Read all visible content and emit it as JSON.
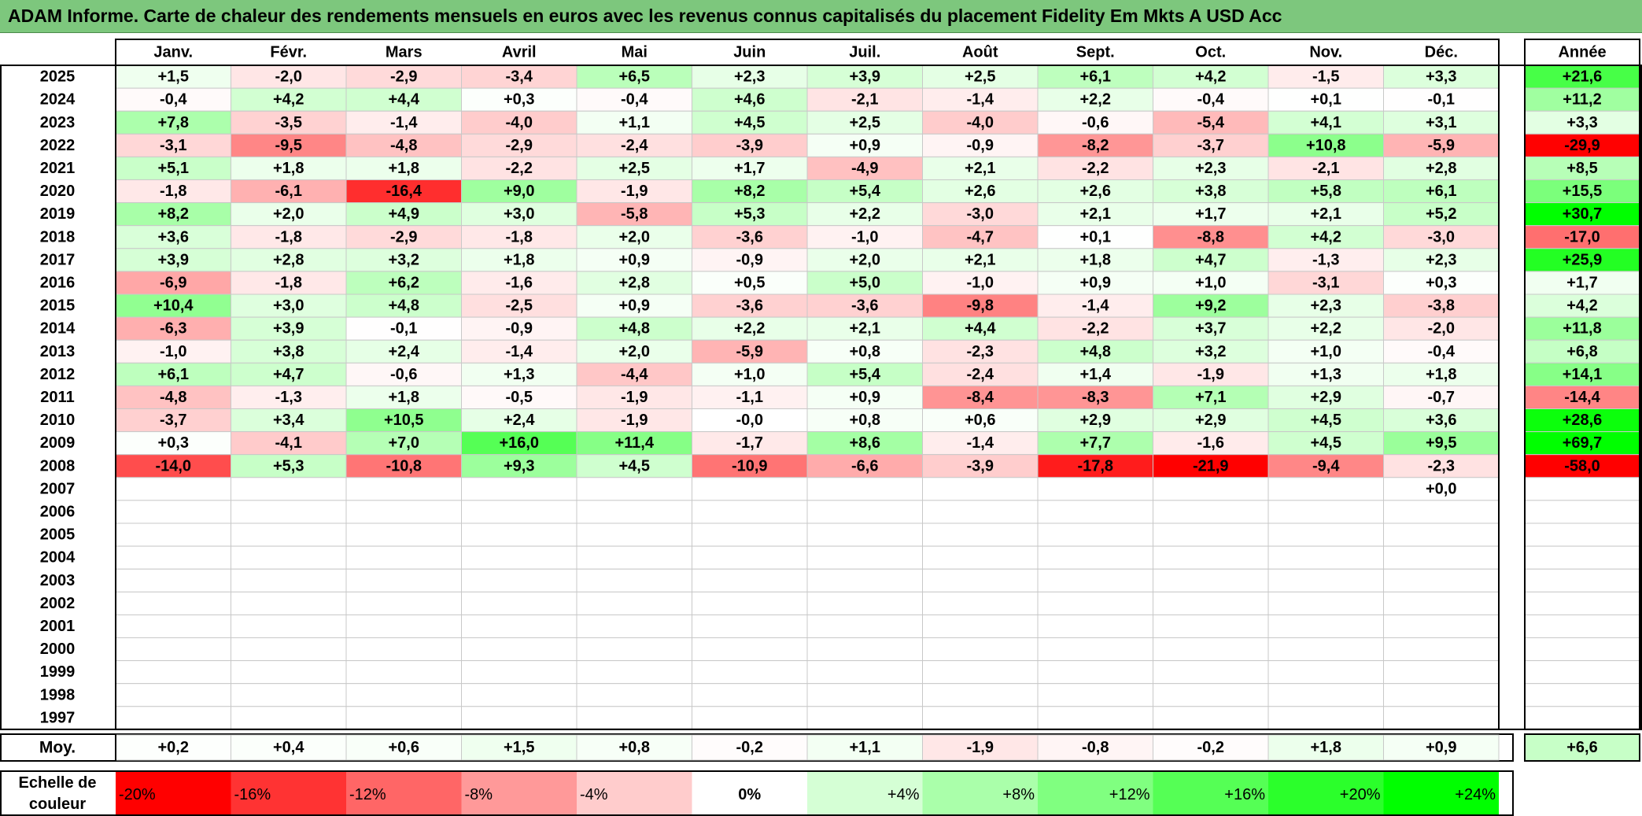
{
  "title": "ADAM Informe. Carte de chaleur des rendements mensuels en euros avec les revenus connus capitalisés du placement Fidelity Em Mkts A USD Acc",
  "chart_data": {
    "type": "heatmap",
    "title": "ADAM Informe. Carte de chaleur des rendements mensuels en euros avec les revenus connus capitalisés du placement Fidelity Em Mkts A USD Acc",
    "months": [
      "Janv.",
      "Févr.",
      "Mars",
      "Avril",
      "Mai",
      "Juin",
      "Juil.",
      "Août",
      "Sept.",
      "Oct.",
      "Nov.",
      "Déc."
    ],
    "annual_header": "Année",
    "rows": [
      {
        "year": "2025",
        "values": [
          "+1,5",
          "-2,0",
          "-2,9",
          "-3,4",
          "+6,5",
          "+2,3",
          "+3,9",
          "+2,5",
          "+6,1",
          "+4,2",
          "-1,5",
          "+3,3"
        ],
        "annual": "+21,6"
      },
      {
        "year": "2024",
        "values": [
          "-0,4",
          "+4,2",
          "+4,4",
          "+0,3",
          "-0,4",
          "+4,6",
          "-2,1",
          "-1,4",
          "+2,2",
          "-0,4",
          "+0,1",
          "-0,1"
        ],
        "annual": "+11,2"
      },
      {
        "year": "2023",
        "values": [
          "+7,8",
          "-3,5",
          "-1,4",
          "-4,0",
          "+1,1",
          "+4,5",
          "+2,5",
          "-4,0",
          "-0,6",
          "-5,4",
          "+4,1",
          "+3,1"
        ],
        "annual": "+3,3"
      },
      {
        "year": "2022",
        "values": [
          "-3,1",
          "-9,5",
          "-4,8",
          "-2,9",
          "-2,4",
          "-3,9",
          "+0,9",
          "-0,9",
          "-8,2",
          "-3,7",
          "+10,8",
          "-5,9"
        ],
        "annual": "-29,9"
      },
      {
        "year": "2021",
        "values": [
          "+5,1",
          "+1,8",
          "+1,8",
          "-2,2",
          "+2,5",
          "+1,7",
          "-4,9",
          "+2,1",
          "-2,2",
          "+2,3",
          "-2,1",
          "+2,8"
        ],
        "annual": "+8,5"
      },
      {
        "year": "2020",
        "values": [
          "-1,8",
          "-6,1",
          "-16,4",
          "+9,0",
          "-1,9",
          "+8,2",
          "+5,4",
          "+2,6",
          "+2,6",
          "+3,8",
          "+5,8",
          "+6,1"
        ],
        "annual": "+15,5"
      },
      {
        "year": "2019",
        "values": [
          "+8,2",
          "+2,0",
          "+4,9",
          "+3,0",
          "-5,8",
          "+5,3",
          "+2,2",
          "-3,0",
          "+2,1",
          "+1,7",
          "+2,1",
          "+5,2"
        ],
        "annual": "+30,7"
      },
      {
        "year": "2018",
        "values": [
          "+3,6",
          "-1,8",
          "-2,9",
          "-1,8",
          "+2,0",
          "-3,6",
          "-1,0",
          "-4,7",
          "+0,1",
          "-8,8",
          "+4,2",
          "-3,0"
        ],
        "annual": "-17,0"
      },
      {
        "year": "2017",
        "values": [
          "+3,9",
          "+2,8",
          "+3,2",
          "+1,8",
          "+0,9",
          "-0,9",
          "+2,0",
          "+2,1",
          "+1,8",
          "+4,7",
          "-1,3",
          "+2,3"
        ],
        "annual": "+25,9"
      },
      {
        "year": "2016",
        "values": [
          "-6,9",
          "-1,8",
          "+6,2",
          "-1,6",
          "+2,8",
          "+0,5",
          "+5,0",
          "-1,0",
          "+0,9",
          "+1,0",
          "-3,1",
          "+0,3"
        ],
        "annual": "+1,7"
      },
      {
        "year": "2015",
        "values": [
          "+10,4",
          "+3,0",
          "+4,8",
          "-2,5",
          "+0,9",
          "-3,6",
          "-3,6",
          "-9,8",
          "-1,4",
          "+9,2",
          "+2,3",
          "-3,8"
        ],
        "annual": "+4,2"
      },
      {
        "year": "2014",
        "values": [
          "-6,3",
          "+3,9",
          "-0,1",
          "-0,9",
          "+4,8",
          "+2,2",
          "+2,1",
          "+4,4",
          "-2,2",
          "+3,7",
          "+2,2",
          "-2,0"
        ],
        "annual": "+11,8"
      },
      {
        "year": "2013",
        "values": [
          "-1,0",
          "+3,8",
          "+2,4",
          "-1,4",
          "+2,0",
          "-5,9",
          "+0,8",
          "-2,3",
          "+4,8",
          "+3,2",
          "+1,0",
          "-0,4"
        ],
        "annual": "+6,8"
      },
      {
        "year": "2012",
        "values": [
          "+6,1",
          "+4,7",
          "-0,6",
          "+1,3",
          "-4,4",
          "+1,0",
          "+5,4",
          "-2,4",
          "+1,4",
          "-1,9",
          "+1,3",
          "+1,8"
        ],
        "annual": "+14,1"
      },
      {
        "year": "2011",
        "values": [
          "-4,8",
          "-1,3",
          "+1,8",
          "-0,5",
          "-1,9",
          "-1,1",
          "+0,9",
          "-8,4",
          "-8,3",
          "+7,1",
          "+2,9",
          "-0,7"
        ],
        "annual": "-14,4"
      },
      {
        "year": "2010",
        "values": [
          "-3,7",
          "+3,4",
          "+10,5",
          "+2,4",
          "-1,9",
          "-0,0",
          "+0,8",
          "+0,6",
          "+2,9",
          "+2,9",
          "+4,5",
          "+3,6"
        ],
        "annual": "+28,6"
      },
      {
        "year": "2009",
        "values": [
          "+0,3",
          "-4,1",
          "+7,0",
          "+16,0",
          "+11,4",
          "-1,7",
          "+8,6",
          "-1,4",
          "+7,7",
          "-1,6",
          "+4,5",
          "+9,5"
        ],
        "annual": "+69,7"
      },
      {
        "year": "2008",
        "values": [
          "-14,0",
          "+5,3",
          "-10,8",
          "+9,3",
          "+4,5",
          "-10,9",
          "-6,6",
          "-3,9",
          "-17,8",
          "-21,9",
          "-9,4",
          "-2,3"
        ],
        "annual": "-58,0"
      },
      {
        "year": "2007",
        "values": [
          "",
          "",
          "",
          "",
          "",
          "",
          "",
          "",
          "",
          "",
          "",
          "+0,0"
        ],
        "annual": ""
      },
      {
        "year": "2006",
        "values": [
          "",
          "",
          "",
          "",
          "",
          "",
          "",
          "",
          "",
          "",
          "",
          ""
        ],
        "annual": ""
      },
      {
        "year": "2005",
        "values": [
          "",
          "",
          "",
          "",
          "",
          "",
          "",
          "",
          "",
          "",
          "",
          ""
        ],
        "annual": ""
      },
      {
        "year": "2004",
        "values": [
          "",
          "",
          "",
          "",
          "",
          "",
          "",
          "",
          "",
          "",
          "",
          ""
        ],
        "annual": ""
      },
      {
        "year": "2003",
        "values": [
          "",
          "",
          "",
          "",
          "",
          "",
          "",
          "",
          "",
          "",
          "",
          ""
        ],
        "annual": ""
      },
      {
        "year": "2002",
        "values": [
          "",
          "",
          "",
          "",
          "",
          "",
          "",
          "",
          "",
          "",
          "",
          ""
        ],
        "annual": ""
      },
      {
        "year": "2001",
        "values": [
          "",
          "",
          "",
          "",
          "",
          "",
          "",
          "",
          "",
          "",
          "",
          ""
        ],
        "annual": ""
      },
      {
        "year": "2000",
        "values": [
          "",
          "",
          "",
          "",
          "",
          "",
          "",
          "",
          "",
          "",
          "",
          ""
        ],
        "annual": ""
      },
      {
        "year": "1999",
        "values": [
          "",
          "",
          "",
          "",
          "",
          "",
          "",
          "",
          "",
          "",
          "",
          ""
        ],
        "annual": ""
      },
      {
        "year": "1998",
        "values": [
          "",
          "",
          "",
          "",
          "",
          "",
          "",
          "",
          "",
          "",
          "",
          ""
        ],
        "annual": ""
      },
      {
        "year": "1997",
        "values": [
          "",
          "",
          "",
          "",
          "",
          "",
          "",
          "",
          "",
          "",
          "",
          ""
        ],
        "annual": ""
      }
    ],
    "average": {
      "label": "Moy.",
      "values": [
        "+0,2",
        "+0,4",
        "+0,6",
        "+1,5",
        "+0,8",
        "-0,2",
        "+1,1",
        "-1,9",
        "-0,8",
        "-0,2",
        "+1,8",
        "+0,9"
      ],
      "annual": "+6,6"
    },
    "scale": {
      "label_line1": "Echelle de",
      "label_line2": "couleur",
      "entries": [
        {
          "label": "-20%",
          "value": -20
        },
        {
          "label": "-16%",
          "value": -16
        },
        {
          "label": "-12%",
          "value": -12
        },
        {
          "label": "-8%",
          "value": -8
        },
        {
          "label": "-4%",
          "value": -4
        },
        {
          "label": "0%",
          "value": 0
        },
        {
          "label": "+4%",
          "value": 4
        },
        {
          "label": "+8%",
          "value": 8
        },
        {
          "label": "+12%",
          "value": 12
        },
        {
          "label": "+16%",
          "value": 16
        },
        {
          "label": "+20%",
          "value": 20
        },
        {
          "label": "+24%",
          "value": 24
        }
      ]
    },
    "colors": {
      "negative": "#ff0000",
      "positive": "#00ff00",
      "neutral": "#ffffff",
      "title_bar": "#7dc77d"
    }
  }
}
